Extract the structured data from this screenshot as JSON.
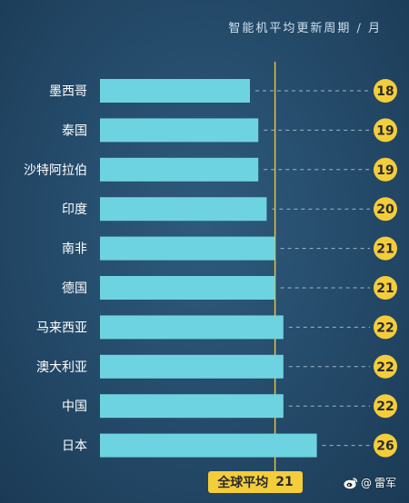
{
  "title": "智能机平均更新周期 / 月",
  "average_label": {
    "text": "全球平均",
    "value": "21"
  },
  "watermark": {
    "at": "@",
    "name": "雷军",
    "icon": "weibo-icon"
  },
  "colors": {
    "bar": "#6ed3e0",
    "badge": "#f4cd3b",
    "average_line": "#e8c940",
    "label": "#ffffff",
    "dash": "#9fb6c7"
  },
  "chart_data": {
    "type": "bar",
    "orientation": "horizontal",
    "title": "智能机平均更新周期 / 月",
    "categories": [
      "墨西哥",
      "泰国",
      "沙特阿拉伯",
      "印度",
      "南非",
      "德国",
      "马来西亚",
      "澳大利亚",
      "中国",
      "日本"
    ],
    "values": [
      18,
      19,
      19,
      20,
      21,
      21,
      22,
      22,
      22,
      26
    ],
    "reference_line": {
      "value": 21,
      "label": "全球平均"
    },
    "grid": false,
    "legend": "none"
  }
}
